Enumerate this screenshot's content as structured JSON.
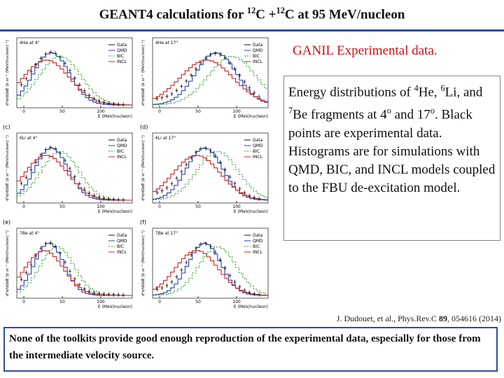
{
  "header": {
    "title": [
      "GEANT4 calculations for ",
      "12",
      "C +",
      "12",
      "C at 95 MeV/nucleon"
    ]
  },
  "source_note": "GANIL Experimental data.",
  "description": [
    "Energy distributions of ",
    "4",
    "He, ",
    "6",
    "Li, and ",
    "7",
    "Be fragments at 4",
    "o",
    " and 17",
    "o",
    ". Black points are experimental data. Histograms are for simulations with QMD, BIC, and INCL models coupled to the FBU de-excitation model."
  ],
  "citation": [
    "J. Dudouet, et al., Phys.Rev.C ",
    "89",
    ", 054616 (2014)"
  ],
  "conclusion": "None of the toolkits provide good enough reproduction of the experimental data, especially for those from the intermediate velocity source.",
  "figure": {
    "panels": [
      {
        "label": "4He at 4°"
      },
      {
        "label": "4He at 17°"
      },
      {
        "label": "6Li at 4°"
      },
      {
        "label": "6Li at 17°"
      },
      {
        "label": "7Be at 4°"
      },
      {
        "label": "7Be at 17°"
      }
    ],
    "panel_letters": [
      "(c)",
      "(d)",
      "(e)",
      "(f)"
    ],
    "legend": [
      "Data",
      "QMD",
      "BIC",
      "INCL"
    ],
    "x_ticks": [
      "0",
      "50",
      "100"
    ],
    "x_label": "E (MeV/nucleon)",
    "y_label": "d²σ/dΩdE (b sr⁻¹ (MeV/nucleon)⁻¹)"
  }
}
